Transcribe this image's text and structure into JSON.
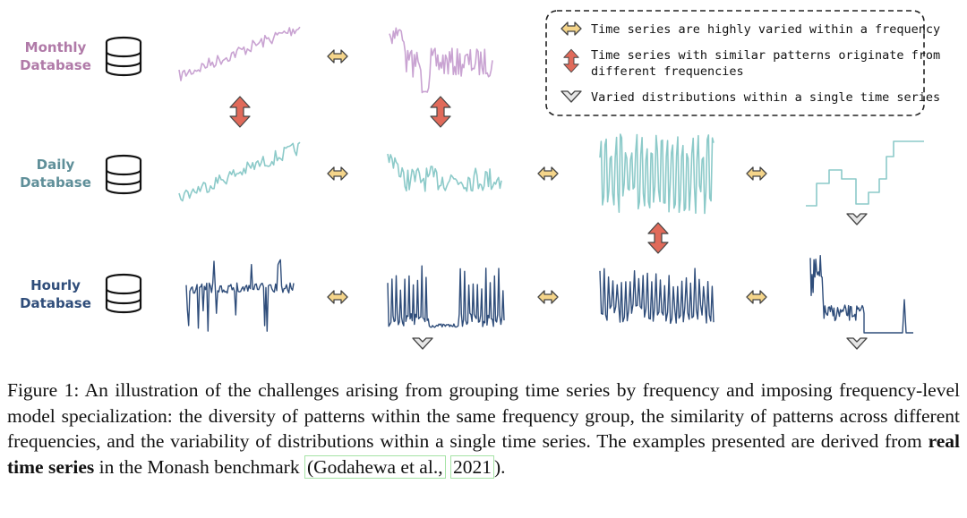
{
  "databases": [
    {
      "label_line1": "Monthly",
      "label_line2": "Database",
      "color": "#b07aa8",
      "series_color": "#c9a3d2"
    },
    {
      "label_line1": "Daily",
      "label_line2": "Database",
      "color": "#5f8f99",
      "series_color": "#8ccac9"
    },
    {
      "label_line1": "Hourly",
      "label_line2": "Database",
      "color": "#2f4d7a",
      "series_color": "#2f4d7a"
    }
  ],
  "legend": {
    "items": [
      {
        "icon": "horizontal-double-arrow-icon",
        "text_line1": "Time series are highly varied within a frequency",
        "text_line2": ""
      },
      {
        "icon": "vertical-double-arrow-icon",
        "text_line1": "Time series with similar patterns originate from",
        "text_line2": "different frequencies"
      },
      {
        "icon": "chevron-down-outline-icon",
        "text_line1": "Varied distributions within a single time series",
        "text_line2": ""
      }
    ]
  },
  "colors": {
    "horizontal_arrow": "#f5d58a",
    "vertical_arrow": "#e06a5a",
    "chevron": "#e6e6e6"
  },
  "caption": {
    "part1": "Figure 1:  An illustration of the challenges arising from grouping time series by frequency and imposing frequency-level model specialization: the diversity of patterns within the same frequency group, the similarity of patterns across different frequencies, and the variability of distributions within a single time series. The examples presented are derived from ",
    "bold": "real time series",
    "part2": " in the Monash benchmark ",
    "cite_author": "(Godahewa et al.,",
    "cite_year": "2021",
    "part3": ")."
  }
}
